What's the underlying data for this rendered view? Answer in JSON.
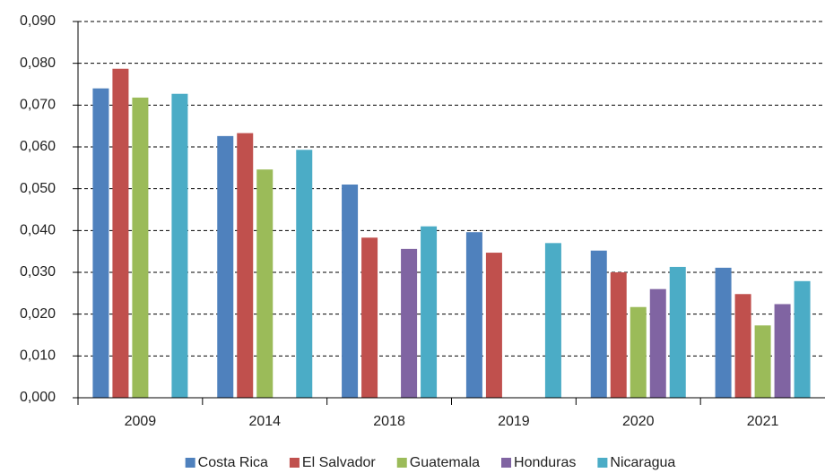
{
  "chart_data": {
    "type": "bar",
    "categories": [
      "2009",
      "2014",
      "2018",
      "2019",
      "2020",
      "2021"
    ],
    "series": [
      {
        "name": "Costa Rica",
        "color": "#4f81bd",
        "values": [
          0.074,
          0.0626,
          0.051,
          0.0396,
          0.0352,
          0.0311
        ]
      },
      {
        "name": "El Salvador",
        "color": "#c0504d",
        "values": [
          0.0787,
          0.0633,
          0.0383,
          0.0347,
          0.03,
          0.0248
        ]
      },
      {
        "name": "Guatemala",
        "color": "#9bbb59",
        "values": [
          0.0718,
          0.0546,
          null,
          null,
          0.0217,
          0.0173
        ]
      },
      {
        "name": "Honduras",
        "color": "#8064a2",
        "values": [
          null,
          null,
          0.0356,
          null,
          0.026,
          0.0224
        ]
      },
      {
        "name": "Nicaragua",
        "color": "#4bacc6",
        "values": [
          0.0727,
          0.0593,
          0.041,
          0.037,
          0.0313,
          0.0279
        ]
      }
    ],
    "ylim": [
      0,
      0.09
    ],
    "yticks": [
      {
        "value": 0,
        "label": "0,000"
      },
      {
        "value": 0.01,
        "label": "0,010"
      },
      {
        "value": 0.02,
        "label": "0,020"
      },
      {
        "value": 0.03,
        "label": "0,030"
      },
      {
        "value": 0.04,
        "label": "0,040"
      },
      {
        "value": 0.05,
        "label": "0,050"
      },
      {
        "value": 0.06,
        "label": "0,060"
      },
      {
        "value": 0.07,
        "label": "0,070"
      },
      {
        "value": 0.08,
        "label": "0,080"
      },
      {
        "value": 0.09,
        "label": "0,090"
      }
    ],
    "grid": true,
    "legend": "bottom"
  }
}
